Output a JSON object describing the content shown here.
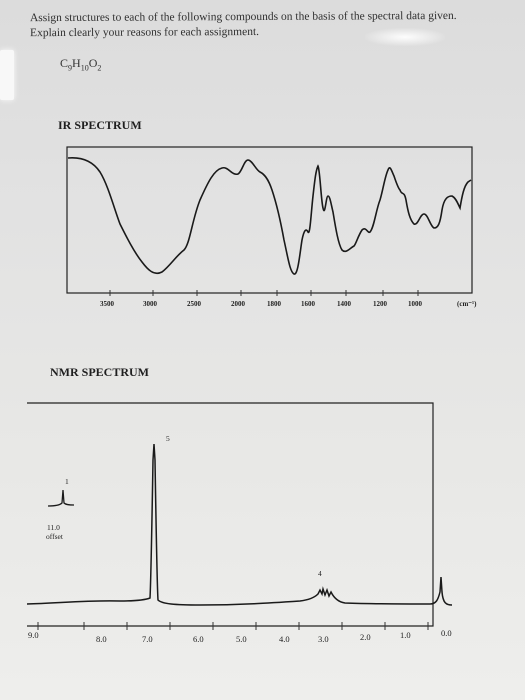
{
  "instructions": "Assign structures to each of the following compounds on the basis of the spectral data given. Explain clearly your reasons for each assignment.",
  "formula": {
    "C": "C",
    "c_count": "9",
    "H": "H",
    "h_count": "10",
    "O": "O",
    "o_count": "2"
  },
  "ir": {
    "title": "IR SPECTRUM",
    "unit_label": "(cm⁻¹)",
    "tick_labels": [
      "3500",
      "3000",
      "2500",
      "2000",
      "1800",
      "1600",
      "1400",
      "1200",
      "1000"
    ]
  },
  "nmr": {
    "title": "NMR SPECTRUM",
    "tick_labels": [
      "9.0",
      "8.0",
      "7.0",
      "6.0",
      "5.0",
      "4.0",
      "3.0",
      "2.0",
      "1.0",
      "0.0"
    ],
    "peak_labels": {
      "aromatic": "5",
      "offset": "1",
      "ch2": "4"
    },
    "offset_text_1": "11.0",
    "offset_text_2": "offset"
  }
}
